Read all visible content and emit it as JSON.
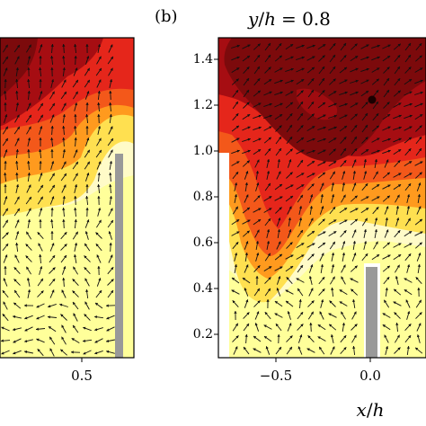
{
  "chart_data": [
    {
      "type": "heatmap",
      "panel_label": "",
      "title": "",
      "xlabel": "",
      "ylabel": "",
      "x_ticks": [
        0.5
      ],
      "x_tick_labels": [
        "0.5"
      ],
      "ylim": [
        0.1,
        1.5
      ],
      "has_vector_overlay": true,
      "obstacle": {
        "x": 0.68,
        "y_top": 0.98
      },
      "colors": [
        "#fffbc8",
        "#ffff9a",
        "#ffe050",
        "#ff9a1e",
        "#f3581a",
        "#e5261b",
        "#a60d12",
        "#7c0a0c"
      ]
    },
    {
      "type": "heatmap",
      "panel_label": "(b)",
      "title": "y/h = 0.8",
      "xlabel": "x/h",
      "ylabel": "",
      "x_ticks": [
        -0.5,
        0.0
      ],
      "x_tick_labels": [
        "−0.5",
        "0.0"
      ],
      "y_ticks": [
        0.2,
        0.4,
        0.6,
        0.8,
        1.0,
        1.2,
        1.4
      ],
      "y_tick_labels": [
        "0.2",
        "0.4",
        "0.6",
        "0.8",
        "1.0",
        "1.2",
        "1.4"
      ],
      "ylim": [
        0.1,
        1.5
      ],
      "has_vector_overlay": true,
      "obstacle": {
        "x": 0.0,
        "y_top": 0.49
      },
      "colors": [
        "#fffbc8",
        "#ffff9a",
        "#ffe050",
        "#ff9a1e",
        "#f3581a",
        "#e5261b",
        "#a60d12",
        "#7c0a0c"
      ]
    }
  ],
  "panel_b_label": "(b)",
  "panel_b_title_y": "y",
  "panel_b_title_h": "h",
  "panel_b_title_value": "= 0.8",
  "panel_b_xlabel_x": "x",
  "panel_b_xlabel_h": "h"
}
